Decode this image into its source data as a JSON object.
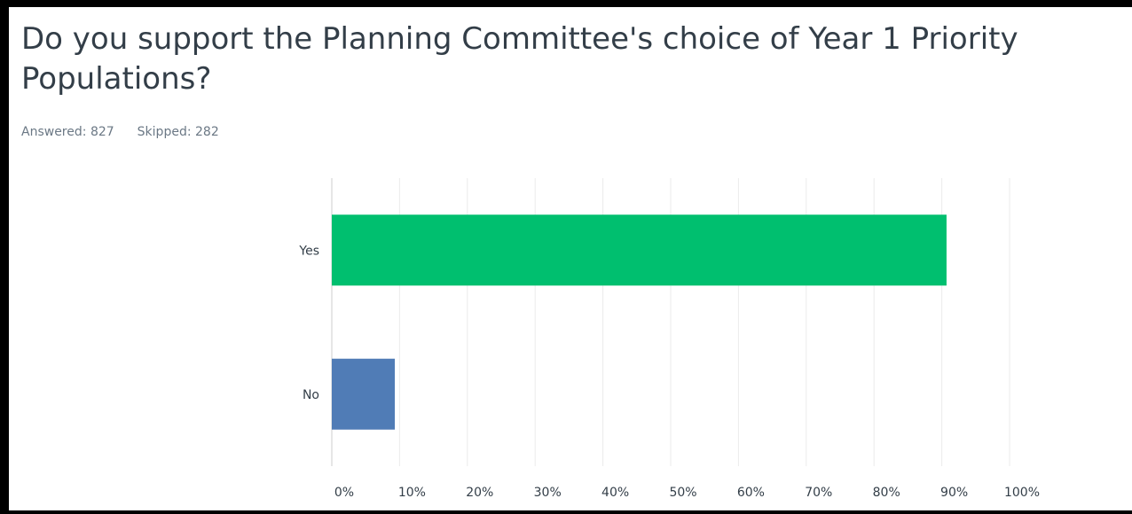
{
  "question": {
    "title": "Do you support the Planning Committee's choice of Year 1 Priority Populations?",
    "answered_label": "Answered:",
    "answered_count": "827",
    "skipped_label": "Skipped:",
    "skipped_count": "282"
  },
  "colors": {
    "yes_bar": "#00bf6f",
    "no_bar": "#507cb6",
    "grid": "#ebebeb",
    "axis": "#cccccc"
  },
  "chart_data": {
    "type": "bar",
    "orientation": "horizontal",
    "categories": [
      "Yes",
      "No"
    ],
    "values": [
      90.7,
      9.3
    ],
    "x_ticks": [
      "0%",
      "10%",
      "20%",
      "30%",
      "40%",
      "50%",
      "60%",
      "70%",
      "80%",
      "90%",
      "100%"
    ],
    "xlim": [
      0,
      100
    ],
    "grid": true
  }
}
